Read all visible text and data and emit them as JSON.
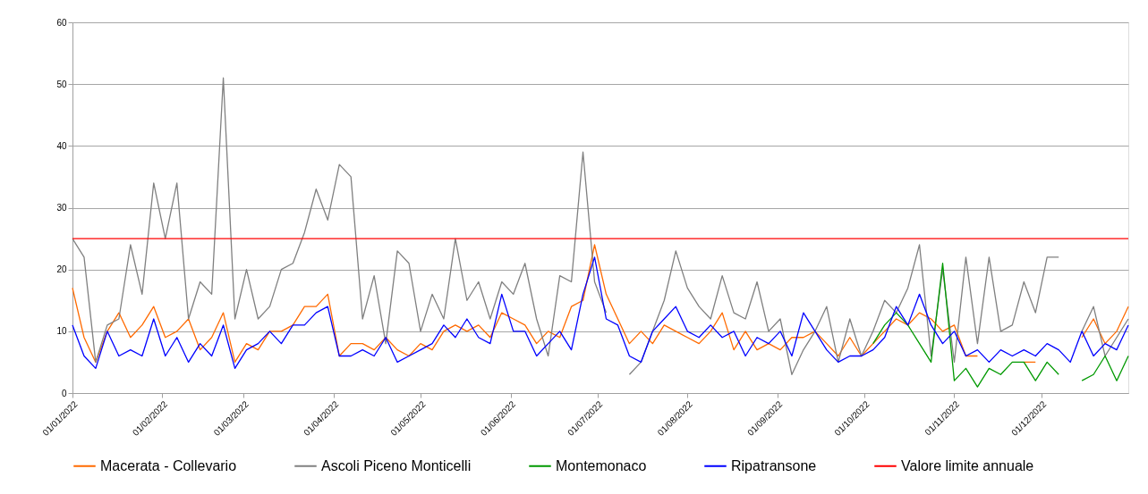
{
  "chart_data": {
    "type": "line",
    "x": [
      "2022-01-01",
      "2022-01-05",
      "2022-01-09",
      "2022-01-13",
      "2022-01-17",
      "2022-01-21",
      "2022-01-25",
      "2022-01-29",
      "2022-02-02",
      "2022-02-06",
      "2022-02-10",
      "2022-02-14",
      "2022-02-18",
      "2022-02-22",
      "2022-02-26",
      "2022-03-02",
      "2022-03-06",
      "2022-03-10",
      "2022-03-14",
      "2022-03-18",
      "2022-03-22",
      "2022-03-26",
      "2022-03-30",
      "2022-04-03",
      "2022-04-07",
      "2022-04-11",
      "2022-04-15",
      "2022-04-19",
      "2022-04-23",
      "2022-04-27",
      "2022-05-01",
      "2022-05-05",
      "2022-05-09",
      "2022-05-13",
      "2022-05-17",
      "2022-05-21",
      "2022-05-25",
      "2022-05-29",
      "2022-06-02",
      "2022-06-06",
      "2022-06-10",
      "2022-06-14",
      "2022-06-18",
      "2022-06-22",
      "2022-06-26",
      "2022-06-30",
      "2022-07-04",
      "2022-07-08",
      "2022-07-12",
      "2022-07-16",
      "2022-07-20",
      "2022-07-24",
      "2022-07-28",
      "2022-08-01",
      "2022-08-05",
      "2022-08-09",
      "2022-08-13",
      "2022-08-17",
      "2022-08-21",
      "2022-08-25",
      "2022-08-29",
      "2022-09-02",
      "2022-09-06",
      "2022-09-10",
      "2022-09-14",
      "2022-09-18",
      "2022-09-22",
      "2022-09-26",
      "2022-09-30",
      "2022-10-04",
      "2022-10-08",
      "2022-10-12",
      "2022-10-16",
      "2022-10-20",
      "2022-10-24",
      "2022-10-28",
      "2022-11-01",
      "2022-11-05",
      "2022-11-09",
      "2022-11-13",
      "2022-11-17",
      "2022-11-21",
      "2022-11-25",
      "2022-11-29",
      "2022-12-03",
      "2022-12-07",
      "2022-12-11",
      "2022-12-15",
      "2022-12-19",
      "2022-12-23",
      "2022-12-27",
      "2022-12-31"
    ],
    "series": [
      {
        "name": "Macerata - Collevario",
        "color": "#ff6a00",
        "values": [
          17,
          9,
          5,
          10,
          13,
          9,
          11,
          14,
          9,
          10,
          12,
          7,
          9,
          13,
          5,
          8,
          7,
          10,
          10,
          11,
          14,
          14,
          16,
          6,
          8,
          8,
          7,
          9,
          7,
          6,
          8,
          7,
          10,
          11,
          10,
          11,
          9,
          13,
          12,
          11,
          8,
          10,
          9,
          14,
          15,
          24,
          16,
          12,
          8,
          10,
          8,
          11,
          10,
          9,
          8,
          10,
          13,
          7,
          10,
          7,
          8,
          7,
          9,
          9,
          10,
          8,
          6,
          9,
          6,
          8,
          10,
          12,
          11,
          13,
          12,
          10,
          11,
          6,
          6,
          null,
          null,
          null,
          5,
          5,
          null,
          null,
          null,
          9,
          12,
          8,
          10,
          14
        ]
      },
      {
        "name": "Ascoli Piceno Monticelli",
        "color": "#808080",
        "values": [
          25,
          22,
          5,
          11,
          12,
          24,
          16,
          34,
          25,
          34,
          12,
          18,
          16,
          51,
          12,
          20,
          12,
          14,
          20,
          21,
          26,
          33,
          28,
          37,
          35,
          12,
          19,
          8,
          23,
          21,
          10,
          16,
          12,
          25,
          15,
          18,
          12,
          18,
          16,
          21,
          12,
          6,
          19,
          18,
          39,
          18,
          13,
          null,
          3,
          5,
          10,
          15,
          23,
          17,
          14,
          12,
          19,
          13,
          12,
          18,
          10,
          12,
          3,
          7,
          10,
          14,
          5,
          12,
          6,
          10,
          15,
          13,
          17,
          24,
          6,
          20,
          5,
          22,
          8,
          22,
          10,
          11,
          18,
          13,
          22,
          22,
          null,
          10,
          14,
          6,
          9,
          12
        ]
      },
      {
        "name": "Montemonaco",
        "color": "#009900",
        "values": [
          null,
          null,
          null,
          null,
          null,
          null,
          null,
          null,
          null,
          null,
          null,
          null,
          null,
          null,
          null,
          null,
          null,
          null,
          null,
          null,
          null,
          null,
          null,
          null,
          null,
          null,
          null,
          null,
          null,
          null,
          null,
          null,
          null,
          null,
          null,
          null,
          null,
          null,
          null,
          null,
          null,
          null,
          null,
          null,
          null,
          null,
          null,
          null,
          null,
          null,
          null,
          null,
          null,
          null,
          null,
          null,
          null,
          null,
          null,
          null,
          null,
          null,
          null,
          null,
          null,
          null,
          null,
          null,
          null,
          8,
          11,
          13,
          11,
          8,
          5,
          21,
          2,
          4,
          1,
          4,
          3,
          5,
          5,
          2,
          5,
          3,
          null,
          2,
          3,
          6,
          2,
          6
        ]
      },
      {
        "name": "Ripatransone",
        "color": "#0000ff",
        "values": [
          11,
          6,
          4,
          10,
          6,
          7,
          6,
          12,
          6,
          9,
          5,
          8,
          6,
          11,
          4,
          7,
          8,
          10,
          8,
          11,
          11,
          13,
          14,
          6,
          6,
          7,
          6,
          9,
          5,
          6,
          7,
          8,
          11,
          9,
          12,
          9,
          8,
          16,
          10,
          10,
          6,
          8,
          10,
          7,
          16,
          22,
          12,
          11,
          6,
          5,
          10,
          12,
          14,
          10,
          9,
          11,
          9,
          10,
          6,
          9,
          8,
          10,
          6,
          13,
          10,
          7,
          5,
          6,
          6,
          7,
          9,
          14,
          11,
          16,
          11,
          8,
          10,
          6,
          7,
          5,
          7,
          6,
          7,
          6,
          8,
          7,
          5,
          10,
          6,
          8,
          7,
          11
        ]
      }
    ],
    "ref_lines": [
      {
        "axis": "y",
        "value": 25,
        "label": "Valore limite annuale",
        "color": "#ff0000"
      }
    ],
    "xlim": [
      "2022-01-01",
      "2022-12-31"
    ],
    "xticks": [
      {
        "value": "2022-01-01",
        "label": "01/01/2022"
      },
      {
        "value": "2022-02-01",
        "label": "01/02/2022"
      },
      {
        "value": "2022-03-01",
        "label": "01/03/2022"
      },
      {
        "value": "2022-04-01",
        "label": "01/04/2022"
      },
      {
        "value": "2022-05-01",
        "label": "01/05/2022"
      },
      {
        "value": "2022-06-01",
        "label": "01/06/2022"
      },
      {
        "value": "2022-07-01",
        "label": "01/07/2022"
      },
      {
        "value": "2022-08-01",
        "label": "01/08/2022"
      },
      {
        "value": "2022-09-01",
        "label": "01/09/2022"
      },
      {
        "value": "2022-10-01",
        "label": "01/10/2022"
      },
      {
        "value": "2022-11-01",
        "label": "01/11/2022"
      },
      {
        "value": "2022-12-01",
        "label": "01/12/2022"
      }
    ],
    "ylim": [
      0,
      60
    ],
    "yticks": [
      0,
      10,
      20,
      30,
      40,
      50,
      60
    ],
    "grid": "y",
    "legend": "bottom",
    "marker": "none",
    "line_style": "solid"
  }
}
